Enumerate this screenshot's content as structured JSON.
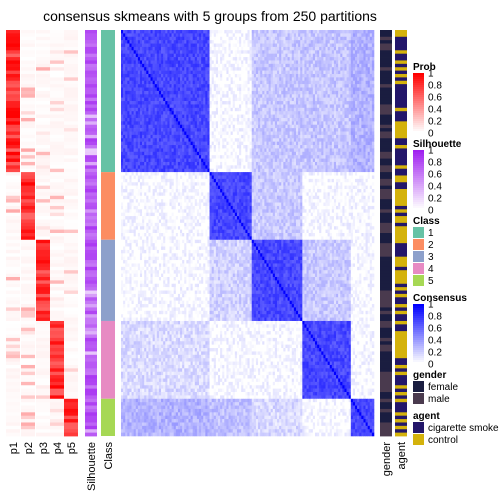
{
  "title": "consensus skmeans with 5 groups from 250 partitions",
  "chart_data": {
    "type": "heatmap",
    "title": "consensus skmeans with 5 groups from 250 partitions",
    "n_samples": 120,
    "class_sizes": [
      42,
      20,
      24,
      23,
      11
    ],
    "columns_left": [
      "p1",
      "p2",
      "p3",
      "p4",
      "p5",
      "Silhouette",
      "Class"
    ],
    "columns_right": [
      "gender",
      "agent"
    ],
    "main_matrix": "Consensus",
    "legends": [
      {
        "title": "Prob",
        "type": "continuous",
        "ticks": [
          "1",
          "0.8",
          "0.6",
          "0.4",
          "0.2",
          "0"
        ],
        "colors": [
          "#ffffff",
          "#ff0000"
        ]
      },
      {
        "title": "Silhouette",
        "type": "continuous",
        "ticks": [
          "1",
          "0.8",
          "0.6",
          "0.4",
          "0.2",
          "0"
        ],
        "colors": [
          "#ffffff",
          "#a020f0"
        ]
      },
      {
        "title": "Class",
        "type": "discrete",
        "labels": [
          "1",
          "2",
          "3",
          "4",
          "5"
        ],
        "colors": [
          "#66c2a5",
          "#fc8d62",
          "#8da0cb",
          "#e78ac3",
          "#a6d854"
        ]
      },
      {
        "title": "Consensus",
        "type": "continuous",
        "ticks": [
          "1",
          "0.8",
          "0.6",
          "0.4",
          "0.2",
          "0"
        ],
        "colors": [
          "#ffffff",
          "#0000ff"
        ]
      },
      {
        "title": "gender",
        "type": "discrete",
        "labels": [
          "female",
          "male"
        ],
        "colors": [
          "#1a1d40",
          "#4a3a4e"
        ]
      },
      {
        "title": "agent",
        "type": "discrete",
        "labels": [
          "cigarette smoke",
          "control"
        ],
        "colors": [
          "#23166a",
          "#d4b20c"
        ]
      }
    ]
  }
}
